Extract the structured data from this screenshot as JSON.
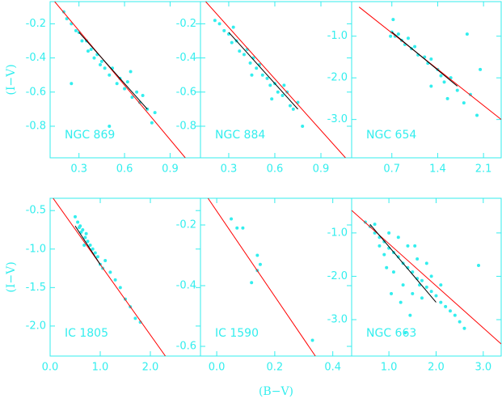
{
  "chart_data": [
    {
      "type": "scatter",
      "title": "NGC 869",
      "ylabel": "(I−V)",
      "color": "#33eeee",
      "xlim": [
        0.11,
        1.1
      ],
      "ylim": [
        -0.985,
        -0.07
      ],
      "xticks": [
        0.3,
        0.6,
        0.9
      ],
      "yticks": [
        -0.2,
        -0.4,
        -0.6,
        -0.8
      ],
      "x": [
        0.2,
        0.22,
        0.25,
        0.28,
        0.3,
        0.32,
        0.35,
        0.36,
        0.38,
        0.4,
        0.42,
        0.44,
        0.45,
        0.47,
        0.5,
        0.52,
        0.55,
        0.57,
        0.6,
        0.62,
        0.65,
        0.68,
        0.7,
        0.72,
        0.75,
        0.78,
        0.8,
        0.25,
        0.5,
        0.64
      ],
      "values": [
        -0.13,
        -0.17,
        -0.2,
        -0.24,
        -0.25,
        -0.3,
        -0.3,
        -0.36,
        -0.35,
        -0.4,
        -0.38,
        -0.44,
        -0.42,
        -0.46,
        -0.5,
        -0.46,
        -0.55,
        -0.52,
        -0.58,
        -0.54,
        -0.63,
        -0.6,
        -0.66,
        -0.62,
        -0.7,
        -0.78,
        -0.72,
        -0.55,
        -0.8,
        -0.48
      ],
      "fit": {
        "color": "#ff0000",
        "x": [
          0.14,
          1.0
        ],
        "values": [
          -0.07,
          -0.985
        ]
      },
      "mean": {
        "color": "#000000",
        "x": [
          0.3,
          0.75
        ],
        "values": [
          -0.25,
          -0.7
        ]
      }
    },
    {
      "type": "scatter",
      "title": "NGC 884",
      "color": "#33eeee",
      "xlim": [
        0.116,
        1.1
      ],
      "ylim": [
        -0.985,
        -0.07
      ],
      "xticks": [
        0.3,
        0.6,
        0.9
      ],
      "yticks": [
        -0.2,
        -0.4,
        -0.6,
        -0.8
      ],
      "x": [
        0.21,
        0.24,
        0.27,
        0.3,
        0.32,
        0.35,
        0.37,
        0.4,
        0.42,
        0.44,
        0.46,
        0.48,
        0.5,
        0.52,
        0.55,
        0.57,
        0.6,
        0.62,
        0.65,
        0.68,
        0.7,
        0.72,
        0.75,
        0.78,
        0.33,
        0.45,
        0.58,
        0.66
      ],
      "values": [
        -0.18,
        -0.2,
        -0.24,
        -0.26,
        -0.31,
        -0.3,
        -0.36,
        -0.38,
        -0.35,
        -0.43,
        -0.4,
        -0.46,
        -0.44,
        -0.5,
        -0.52,
        -0.56,
        -0.55,
        -0.6,
        -0.62,
        -0.6,
        -0.68,
        -0.7,
        -0.66,
        -0.8,
        -0.22,
        -0.5,
        -0.64,
        -0.56
      ],
      "fit": {
        "color": "#ff0000",
        "x": [
          0.15,
          1.06
        ],
        "values": [
          -0.07,
          -0.985
        ]
      },
      "mean": {
        "color": "#000000",
        "x": [
          0.3,
          0.75
        ],
        "values": [
          -0.25,
          -0.7
        ]
      }
    },
    {
      "type": "scatter",
      "title": "NGC 654",
      "color": "#33eeee",
      "xlim": [
        0.086,
        2.37
      ],
      "ylim": [
        -3.92,
        -0.17
      ],
      "xticks": [
        0.7,
        1.4,
        2.1
      ],
      "yticks": [
        {
          "value": -1,
          "label": "-1.0"
        },
        {
          "value": -2,
          "label": "-2.0"
        },
        {
          "value": -3,
          "label": "-3.0"
        }
      ],
      "x": [
        0.7,
        0.72,
        0.75,
        0.8,
        0.85,
        0.9,
        0.95,
        1.0,
        1.05,
        1.1,
        1.2,
        1.25,
        1.3,
        1.4,
        1.45,
        1.5,
        1.6,
        1.7,
        1.8,
        1.9,
        2.0,
        1.85,
        1.3,
        1.55,
        0.68,
        2.05
      ],
      "values": [
        -0.9,
        -0.6,
        -1.0,
        -0.95,
        -1.1,
        -1.2,
        -1.05,
        -1.3,
        -1.25,
        -1.45,
        -1.5,
        -1.65,
        -1.55,
        -1.8,
        -1.95,
        -2.1,
        -2.0,
        -2.3,
        -2.6,
        -2.4,
        -2.9,
        -0.95,
        -2.2,
        -2.5,
        -1.0,
        -1.8
      ],
      "fit": {
        "color": "#ff0000",
        "x": [
          0.2,
          2.37
        ],
        "values": [
          -0.3,
          -3.0
        ]
      },
      "mean": {
        "color": "#000000",
        "x": [
          0.7,
          1.7
        ],
        "values": [
          -0.9,
          -2.2
        ]
      }
    },
    {
      "type": "scatter",
      "title": "IC 1805",
      "ylabel": "(I−V)",
      "color": "#33eeee",
      "xlim": [
        0,
        3.0
      ],
      "ylim": [
        -2.39,
        -0.34
      ],
      "xticks": [
        {
          "value": 0,
          "label": "0.0"
        },
        {
          "value": 1,
          "label": "1.0"
        },
        {
          "value": 2,
          "label": "2.0"
        }
      ],
      "yticks": [
        -0.5,
        {
          "value": -1,
          "label": "-1.0"
        },
        -1.5,
        {
          "value": -2,
          "label": "-2.0"
        }
      ],
      "x": [
        0.5,
        0.55,
        0.6,
        0.62,
        0.65,
        0.7,
        0.72,
        0.75,
        0.8,
        0.85,
        0.9,
        0.95,
        1.0,
        1.1,
        1.2,
        1.3,
        1.4,
        1.5,
        1.6,
        1.7,
        1.8,
        0.58,
        0.68,
        1.05
      ],
      "values": [
        -0.58,
        -0.65,
        -0.7,
        -0.78,
        -0.75,
        -0.85,
        -0.8,
        -0.9,
        -0.95,
        -1.0,
        -1.05,
        -1.1,
        -1.2,
        -1.15,
        -1.3,
        -1.4,
        -1.5,
        -1.65,
        -1.75,
        -1.9,
        -1.95,
        -0.72,
        -0.95,
        -1.25
      ],
      "fit": {
        "color": "#ff0000",
        "x": [
          0.06,
          2.3
        ],
        "values": [
          -0.34,
          -2.39
        ]
      },
      "mean": {
        "color": "#000000",
        "x": [
          0.5,
          1.0
        ],
        "values": [
          -0.7,
          -1.2
        ]
      }
    },
    {
      "type": "scatter",
      "title": "IC 1590",
      "xlabel": "(B−V)",
      "color": "#33eeee",
      "xlim": [
        -0.056,
        0.465
      ],
      "ylim": [
        -0.632,
        -0.112
      ],
      "xticks": [
        {
          "value": 0,
          "label": "0.0"
        },
        0.2,
        0.4
      ],
      "yticks": [
        -0.2,
        -0.4,
        -0.6
      ],
      "x": [
        0.05,
        0.07,
        0.09,
        0.12,
        0.14,
        0.15,
        0.14,
        0.33
      ],
      "values": [
        -0.18,
        -0.21,
        -0.21,
        -0.39,
        -0.3,
        -0.33,
        -0.35,
        -0.58
      ],
      "fit": {
        "color": "#ff0000",
        "x": [
          -0.03,
          0.34
        ],
        "values": [
          -0.112,
          -0.632
        ]
      }
    },
    {
      "type": "scatter",
      "title": "NGC 663",
      "color": "#33eeee",
      "xlim": [
        0.21,
        3.38
      ],
      "ylim": [
        -3.84,
        -0.2
      ],
      "xticks": [
        {
          "value": 1,
          "label": "1.0"
        },
        {
          "value": 2,
          "label": "2.0"
        },
        {
          "value": 3,
          "label": "3.0"
        }
      ],
      "yticks": [
        {
          "value": -1,
          "label": "-1.0"
        },
        {
          "value": -2,
          "label": "-2.0"
        },
        {
          "value": -3,
          "label": "-3.0"
        }
      ],
      "x": [
        0.5,
        0.6,
        0.7,
        0.8,
        0.9,
        1.0,
        1.1,
        1.2,
        1.3,
        1.4,
        1.5,
        1.6,
        1.7,
        1.8,
        1.9,
        2.0,
        2.1,
        2.2,
        2.3,
        2.4,
        2.5,
        0.7,
        0.9,
        1.1,
        1.3,
        1.5,
        1.7,
        1.9,
        2.1,
        1.0,
        1.2,
        1.4,
        1.6,
        1.8,
        0.8,
        1.05,
        1.25,
        1.45,
        1.65,
        2.9,
        2.6,
        1.35,
        0.95,
        1.55
      ],
      "values": [
        -0.75,
        -0.85,
        -1.0,
        -1.1,
        -1.2,
        -1.35,
        -1.45,
        -1.55,
        -1.7,
        -1.8,
        -1.9,
        -2.05,
        -2.1,
        -2.25,
        -2.35,
        -2.45,
        -2.6,
        -2.7,
        -2.8,
        -2.9,
        -3.05,
        -0.8,
        -1.5,
        -1.9,
        -2.2,
        -2.4,
        -2.5,
        -2.0,
        -2.2,
        -1.0,
        -1.1,
        -1.3,
        -1.6,
        -1.7,
        -1.3,
        -2.4,
        -2.6,
        -2.9,
        -2.2,
        -1.75,
        -3.2,
        -3.3,
        -1.8,
        -1.3
      ],
      "fit": {
        "color": "#ff0000",
        "x": [
          0.21,
          3.38
        ],
        "values": [
          -0.48,
          -3.56
        ]
      },
      "mean": {
        "color": "#000000",
        "x": [
          0.6,
          2.0
        ],
        "values": [
          -0.8,
          -2.6
        ]
      }
    }
  ]
}
